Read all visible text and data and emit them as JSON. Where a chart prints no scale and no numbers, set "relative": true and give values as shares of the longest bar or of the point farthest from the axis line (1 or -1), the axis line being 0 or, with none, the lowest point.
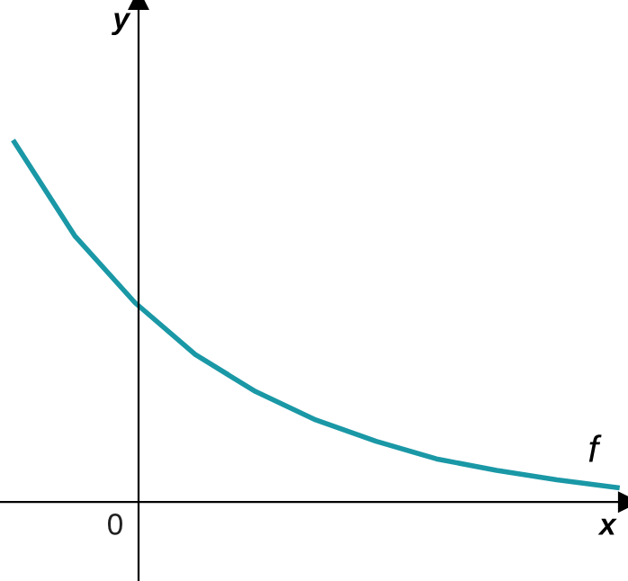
{
  "chart_data": {
    "type": "line",
    "relative": true,
    "xlabel": "x",
    "ylabel": "y",
    "categories": [
      null,
      null,
      null,
      null,
      null,
      null,
      null,
      null,
      null,
      null,
      null
    ],
    "series": [
      {
        "color": "#1a98a6",
        "values": [
          1,
          0.74,
          0.554,
          0.41,
          0.307,
          0.228,
          0.169,
          0.12,
          0.088,
          0.062,
          0.04
        ]
      }
    ],
    "annotations": [
      "0",
      "f"
    ],
    "grid": false,
    "legend": false,
    "marker": "none",
    "line_style": "solid"
  }
}
